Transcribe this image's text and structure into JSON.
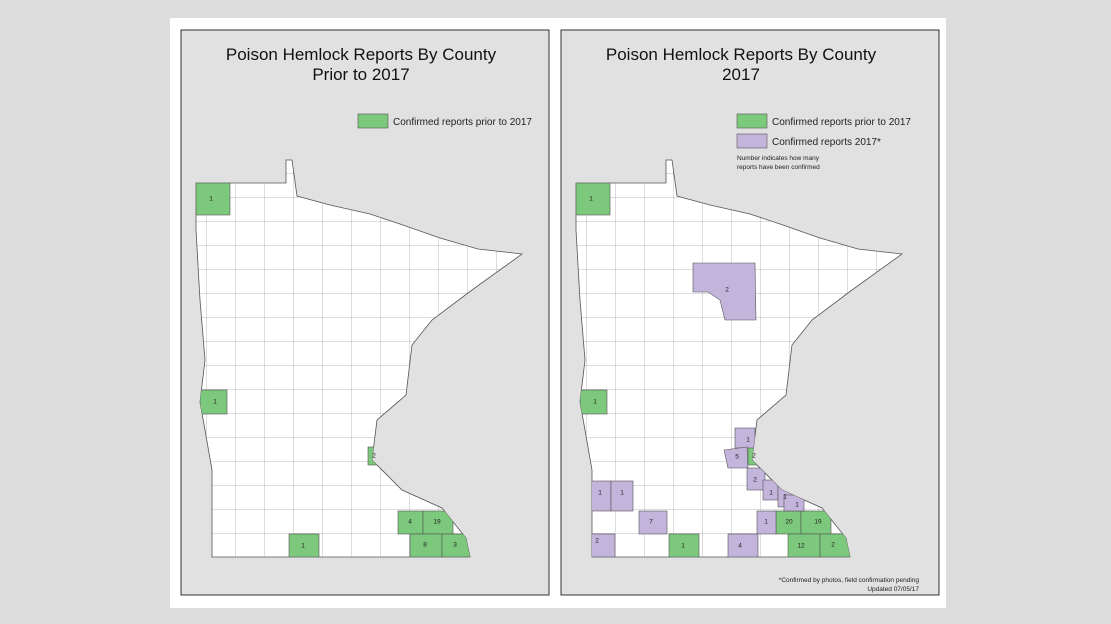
{
  "left_map": {
    "title": "Poison Hemlock Reports By County",
    "subtitle": "Prior to 2017",
    "legend": [
      "Confirmed reports prior to 2017"
    ],
    "counts": [
      1,
      1,
      2,
      4,
      19,
      8,
      3,
      1
    ]
  },
  "right_map": {
    "title": "Poison Hemlock Reports By County",
    "subtitle": "2017",
    "legend": [
      "Confirmed reports prior to 2017",
      "Confirmed reports 2017*"
    ],
    "note": [
      "Number indicates how many",
      "reports have been confirmed"
    ],
    "prior_counts": [
      1,
      1,
      2,
      20,
      19,
      12,
      2,
      1
    ],
    "counts_2017": [
      2,
      1,
      5,
      2,
      1,
      1,
      1,
      1,
      1,
      7,
      1,
      2,
      4
    ],
    "footnote": [
      "*Confirmed by photos, field confirmation pending",
      "Updated 07/05/17"
    ]
  }
}
